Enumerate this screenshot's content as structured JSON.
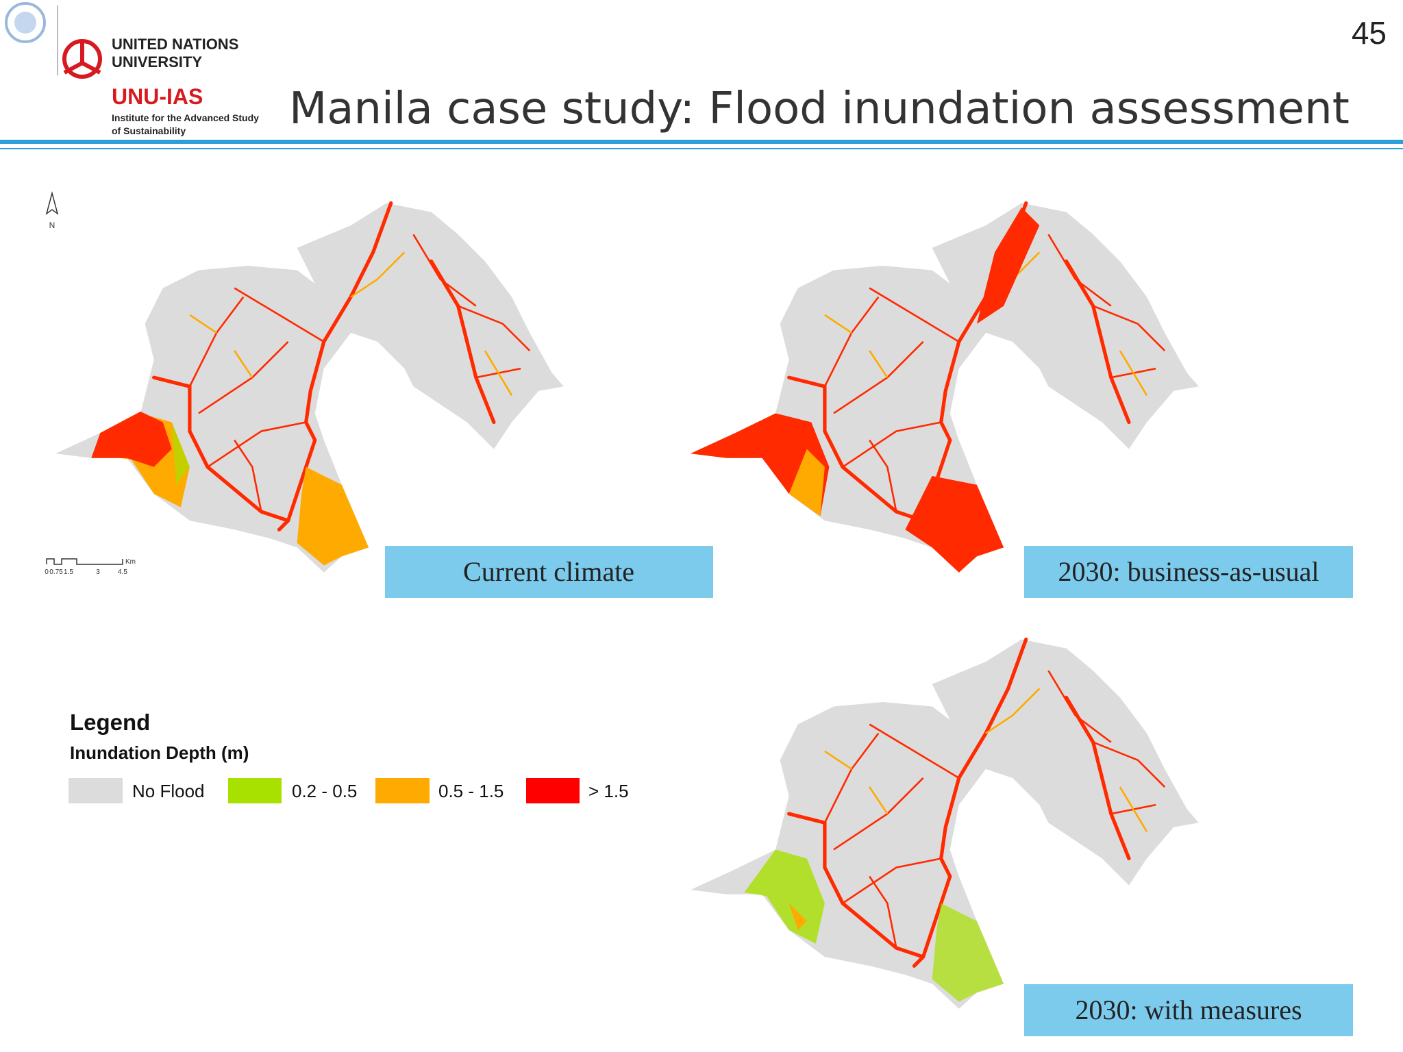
{
  "header": {
    "page_number": "45",
    "logo": {
      "line1": "UNITED NATIONS",
      "line2": "UNIVERSITY",
      "acronym": "UNU-IAS",
      "subtitle_line1": "Institute for the Advanced Study",
      "subtitle_line2": "of Sustainability"
    },
    "title": "Manila case study: Flood inundation assessment"
  },
  "maps": [
    {
      "caption": "Current climate"
    },
    {
      "caption": "2030: business-as-usual"
    },
    {
      "caption": "2030: with measures"
    }
  ],
  "north_arrow": "N",
  "scale_bar": {
    "labels": [
      "0",
      "0.75",
      "1.5",
      "3",
      "4.5"
    ],
    "unit": "Km"
  },
  "legend": {
    "title": "Legend",
    "subtitle": "Inundation Depth (m)",
    "items": [
      {
        "label": "No Flood",
        "color": "#dcdcdc"
      },
      {
        "label": "0.2 - 0.5",
        "color": "#a8e000"
      },
      {
        "label": "0.5 - 1.5",
        "color": "#ffaa00"
      },
      {
        "label": "> 1.5",
        "color": "#ff0000"
      }
    ]
  }
}
